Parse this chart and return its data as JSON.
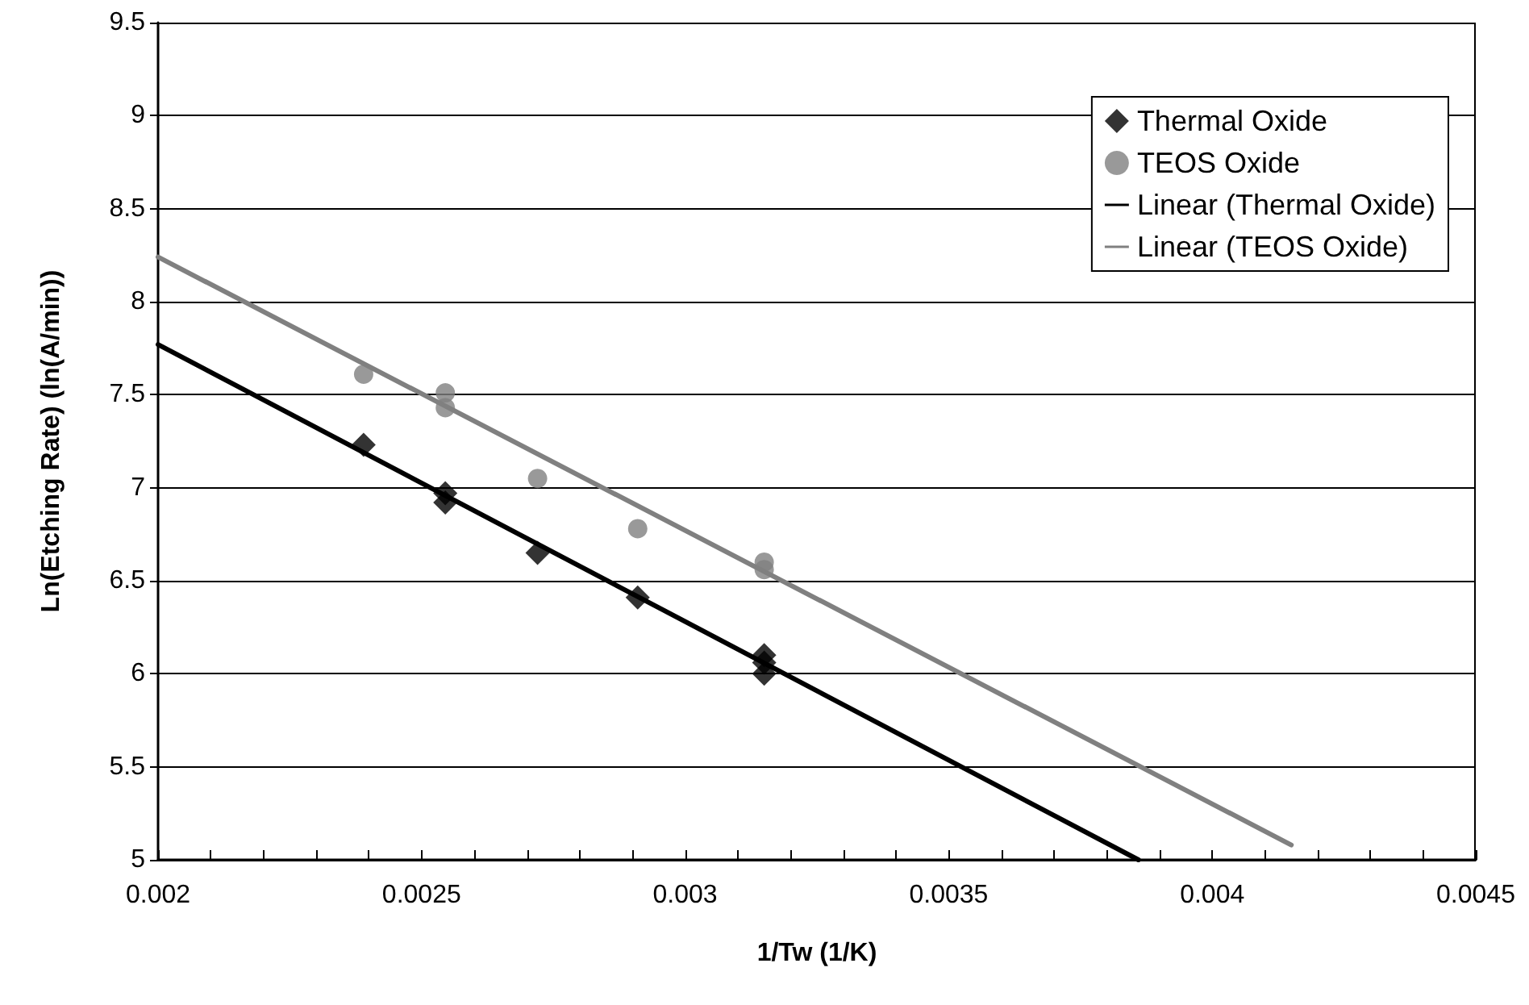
{
  "chart_data": {
    "type": "scatter",
    "xlabel": "1/Tw (1/K)",
    "ylabel": "Ln(Etching Rate) (ln(A/min))",
    "xlim": [
      0.002,
      0.0045
    ],
    "xticks": [
      0.002,
      0.0025,
      0.003,
      0.0035,
      0.004,
      0.0045
    ],
    "ylim": [
      5,
      9.5
    ],
    "yticks": [
      5,
      5.5,
      6,
      6.5,
      7,
      7.5,
      8,
      8.5,
      9,
      9.5
    ],
    "grid": "y",
    "legend": "top right",
    "series": [
      {
        "name": "Thermal Oxide",
        "marker": "diamond",
        "color": "#000000",
        "x": [
          0.00239,
          0.002545,
          0.002545,
          0.00272,
          0.00291,
          0.00315,
          0.00315,
          0.00315
        ],
        "values": [
          7.23,
          6.97,
          6.92,
          6.65,
          6.41,
          6.1,
          6.06,
          6.0
        ]
      },
      {
        "name": "TEOS Oxide",
        "marker": "circle",
        "color": "#808080",
        "x": [
          0.00239,
          0.002545,
          0.002545,
          0.00272,
          0.00291,
          0.00315,
          0.00315
        ],
        "values": [
          7.61,
          7.51,
          7.43,
          7.05,
          6.78,
          6.6,
          6.56
        ]
      },
      {
        "name": "Linear (Thermal Oxide)",
        "type": "line",
        "marker": "none",
        "color": "#000000",
        "x": [
          0.002,
          0.00386
        ],
        "values": [
          7.77,
          5.0
        ]
      },
      {
        "name": "Linear (TEOS Oxide)",
        "type": "line",
        "marker": "none",
        "color": "#808080",
        "x": [
          0.002,
          0.00415
        ],
        "values": [
          8.24,
          5.08
        ]
      }
    ]
  }
}
